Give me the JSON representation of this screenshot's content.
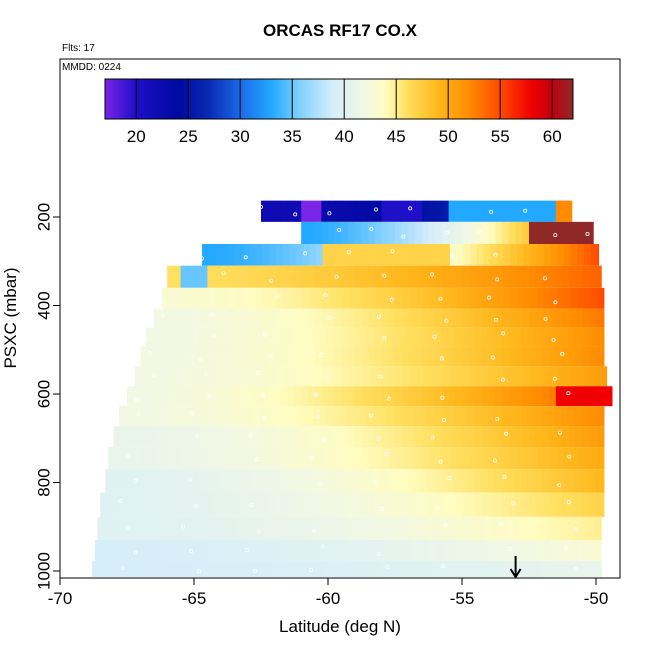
{
  "chart_data": {
    "type": "heatmap",
    "title": "ORCAS RF17 CO.X",
    "annotations": {
      "flights": "Flts: 17",
      "mmdd": "MMDD: 0224"
    },
    "xlabel": "Latitude (deg N)",
    "ylabel": "PSXC (mbar)",
    "xlim": [
      -70,
      -49
    ],
    "ylim": [
      1020,
      40
    ],
    "y_reversed": true,
    "x_ticks": [
      -70,
      -65,
      -60,
      -55,
      -50
    ],
    "y_ticks": [
      200,
      400,
      600,
      800,
      1000
    ],
    "colorbar": {
      "range": [
        17,
        62
      ],
      "ticks": [
        20,
        25,
        30,
        35,
        40,
        45,
        50,
        55,
        60
      ],
      "stops": [
        {
          "v": 17,
          "c": "#7a24e8"
        },
        {
          "v": 20,
          "c": "#1e0fc8"
        },
        {
          "v": 24,
          "c": "#0008a0"
        },
        {
          "v": 27,
          "c": "#0a2ab4"
        },
        {
          "v": 30,
          "c": "#1a6ae8"
        },
        {
          "v": 33,
          "c": "#22a8ff"
        },
        {
          "v": 36,
          "c": "#8ad4ff"
        },
        {
          "v": 39,
          "c": "#d6eefa"
        },
        {
          "v": 42,
          "c": "#f2f8e4"
        },
        {
          "v": 44,
          "c": "#fffcc0"
        },
        {
          "v": 46,
          "c": "#ffe060"
        },
        {
          "v": 49,
          "c": "#ffb81c"
        },
        {
          "v": 52,
          "c": "#ff8c00"
        },
        {
          "v": 55,
          "c": "#ff4a00"
        },
        {
          "v": 58,
          "c": "#f00000"
        },
        {
          "v": 60,
          "c": "#c00010"
        },
        {
          "v": 62,
          "c": "#902828"
        }
      ]
    },
    "rows": [
      {
        "p": 185,
        "x0": -62.5,
        "x1": -50.9,
        "v0": 22,
        "v1": 30,
        "peak": 49,
        "pv": 53,
        "pw": 0.6
      },
      {
        "p": 237,
        "x0": -61.0,
        "x1": -50.1,
        "v0": 33,
        "v1": 55,
        "peak": 49,
        "pv": 59,
        "pw": 1.2
      },
      {
        "p": 285,
        "x0": -64.7,
        "x1": -49.9,
        "v0": 33,
        "v1": 55,
        "peak": 50,
        "pv": 58,
        "pw": 1.5
      },
      {
        "p": 335,
        "x0": -66.0,
        "x1": -49.8,
        "v0": 46,
        "v1": 54,
        "peak": 51,
        "pv": 57,
        "pw": 1.5
      },
      {
        "p": 385,
        "x0": -66.2,
        "x1": -49.7,
        "v0": 43,
        "v1": 55,
        "peak": 51,
        "pv": 56,
        "pw": 1.8
      },
      {
        "p": 430,
        "x0": -66.5,
        "x1": -49.7,
        "v0": 42,
        "v1": 53,
        "peak": 50,
        "pv": 55,
        "pw": 2.0
      },
      {
        "p": 470,
        "x0": -66.8,
        "x1": -49.7,
        "v0": 42,
        "v1": 52,
        "peak": 50,
        "pv": 56,
        "pw": 1.5
      },
      {
        "p": 515,
        "x0": -67.0,
        "x1": -49.7,
        "v0": 42,
        "v1": 52,
        "peak": 50,
        "pv": 55,
        "pw": 2.0
      },
      {
        "p": 560,
        "x0": -67.2,
        "x1": -49.6,
        "v0": 42,
        "v1": 51,
        "peak": 52,
        "pv": 55,
        "pw": 2.2
      },
      {
        "p": 605,
        "x0": -67.5,
        "x1": -49.4,
        "v0": 42,
        "v1": 55,
        "peak": 52,
        "pv": 56,
        "pw": 2.2
      },
      {
        "p": 650,
        "x0": -67.8,
        "x1": -49.7,
        "v0": 42,
        "v1": 52,
        "peak": 52,
        "pv": 52,
        "pw": 2.0
      },
      {
        "p": 695,
        "x0": -68.0,
        "x1": -49.7,
        "v0": 41,
        "v1": 51,
        "peak": 52,
        "pv": 50,
        "pw": 2.0
      },
      {
        "p": 745,
        "x0": -68.2,
        "x1": -49.7,
        "v0": 41,
        "v1": 50,
        "peak": 53,
        "pv": 48,
        "pw": 2.0
      },
      {
        "p": 795,
        "x0": -68.3,
        "x1": -49.7,
        "v0": 40,
        "v1": 49,
        "peak": 54,
        "pv": 46,
        "pw": 2.0
      },
      {
        "p": 850,
        "x0": -68.5,
        "x1": -49.7,
        "v0": 40,
        "v1": 47,
        "peak": 54,
        "pv": 45,
        "pw": 2.0
      },
      {
        "p": 905,
        "x0": -68.6,
        "x1": -49.8,
        "v0": 40,
        "v1": 45,
        "peak": 54,
        "pv": 44,
        "pw": 2.0
      },
      {
        "p": 955,
        "x0": -68.7,
        "x1": -49.8,
        "v0": 39,
        "v1": 43,
        "peak": 54,
        "pv": 42,
        "pw": 2.0
      },
      {
        "p": 1000,
        "x0": -68.8,
        "x1": -49.8,
        "v0": 39,
        "v1": 41,
        "peak": 54,
        "pv": 41,
        "pw": 2.0
      }
    ],
    "cell_color_overrides": [
      {
        "p": 185,
        "x0": -60.9,
        "x1": -60.3,
        "v": 17
      },
      {
        "p": 185,
        "x0": -58.0,
        "x1": -56.5,
        "v": 20
      },
      {
        "p": 185,
        "x0": -55.5,
        "x1": -51.5,
        "v": 33
      },
      {
        "p": 185,
        "x0": -51.5,
        "x1": -50.9,
        "v": 52
      },
      {
        "p": 237,
        "x0": -52.5,
        "x1": -50.1,
        "v": 62
      },
      {
        "p": 285,
        "x0": -60.2,
        "x1": -55.5,
        "v": 47
      },
      {
        "p": 335,
        "x0": -65.6,
        "x1": -64.5,
        "v": 35
      },
      {
        "p": 605,
        "x0": -51.5,
        "x1": -49.4,
        "v": 58
      }
    ],
    "marker_note": "small open circles mark sampled points along each flight leg",
    "arrow_at_latitude": -53
  }
}
